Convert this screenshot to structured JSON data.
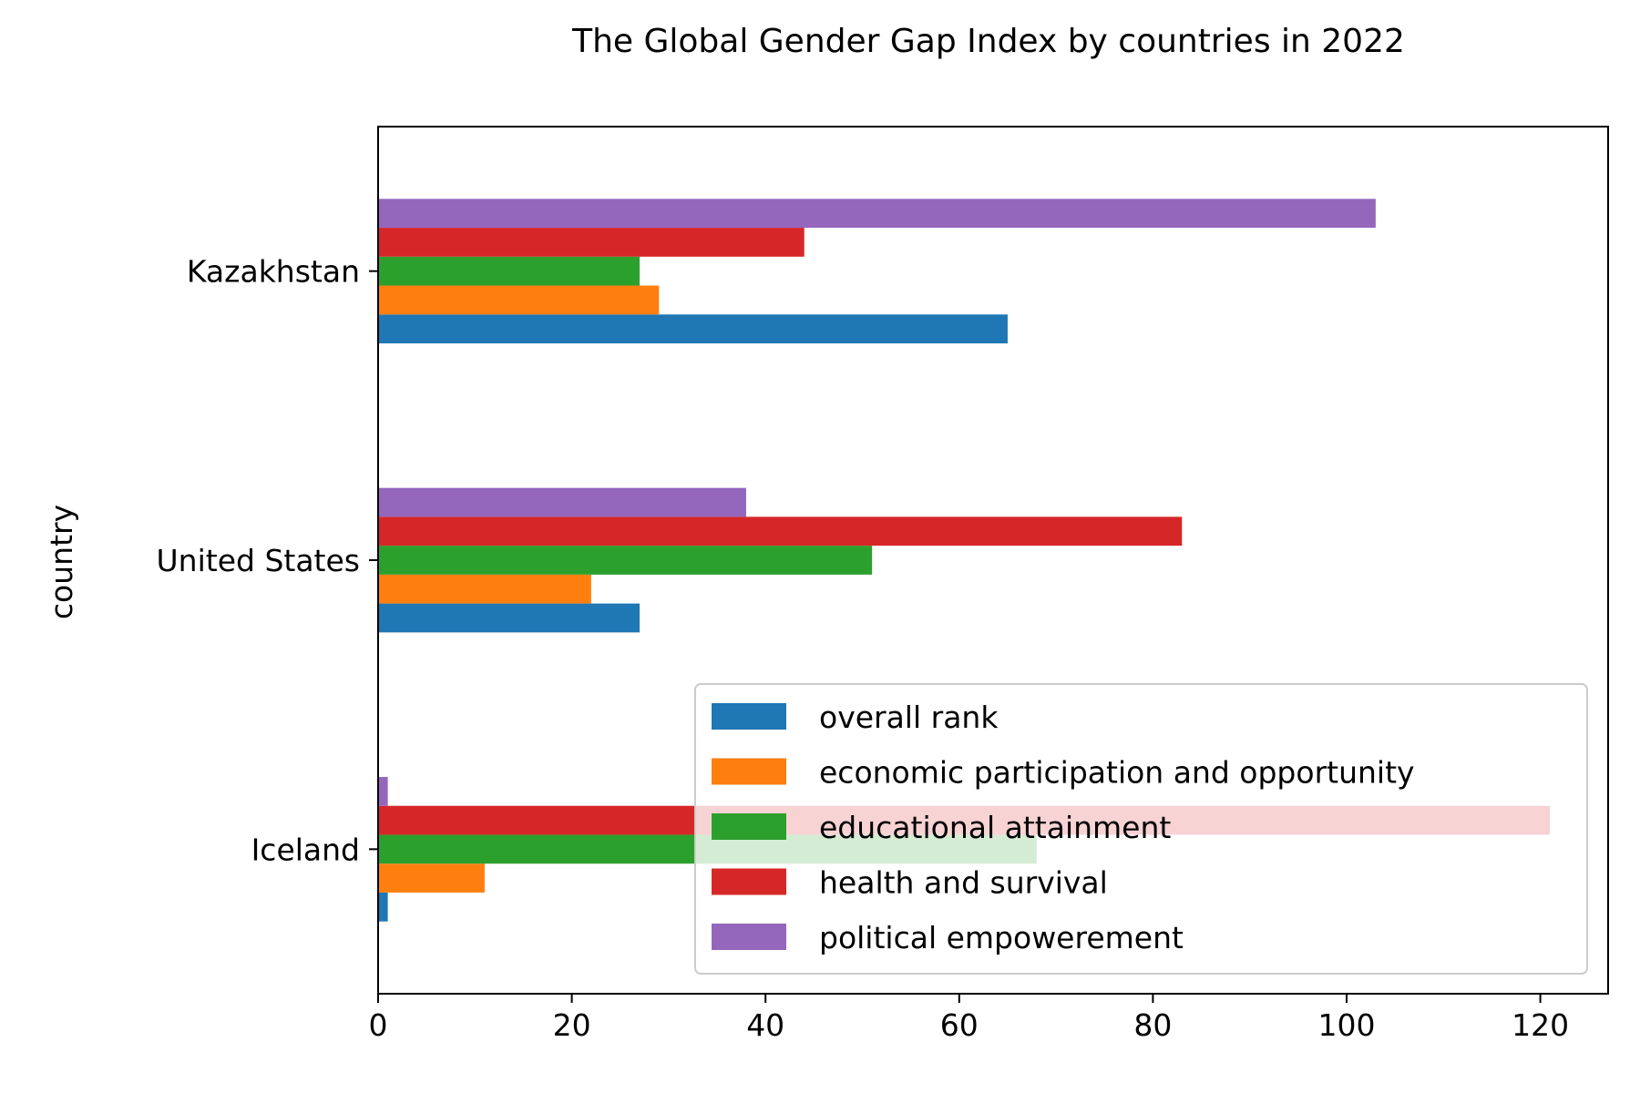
{
  "chart_data": {
    "type": "bar",
    "orientation": "horizontal",
    "title": "The Global Gender Gap Index by countries in 2022",
    "xlabel": "",
    "ylabel": "country",
    "categories": [
      "Iceland",
      "United States",
      "Kazakhstan"
    ],
    "series": [
      {
        "name": "overall rank",
        "color": "#1f77b4",
        "values": [
          1,
          27,
          65
        ]
      },
      {
        "name": "economic participation and opportunity",
        "color": "#ff7f0e",
        "values": [
          11,
          22,
          29
        ]
      },
      {
        "name": "educational attainment",
        "color": "#2ca02c",
        "values": [
          68,
          51,
          27
        ]
      },
      {
        "name": "health and survival",
        "color": "#d62728",
        "values": [
          121,
          83,
          44
        ]
      },
      {
        "name": "political empowerement",
        "color": "#9467bd",
        "values": [
          1,
          38,
          103
        ]
      }
    ],
    "xlim": [
      0,
      127
    ],
    "xticks": [
      0,
      20,
      40,
      60,
      80,
      100,
      120
    ],
    "grid": false,
    "legend_position": "lower-right"
  }
}
